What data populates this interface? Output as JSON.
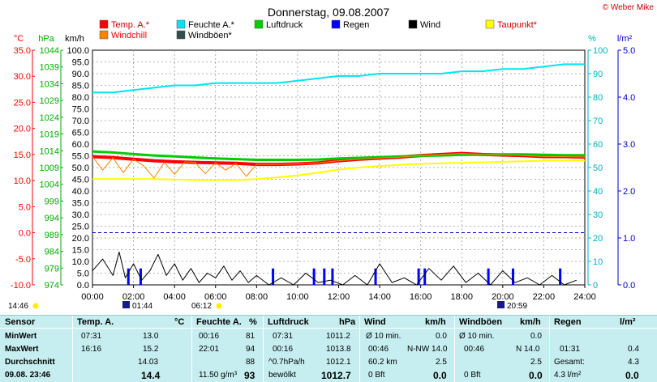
{
  "title": "Donnerstag, 09.08.2007",
  "copyright": "© Weber Mike",
  "unit_labels": {
    "celsius": "°C",
    "hpa": "hPa",
    "kmh": "km/h",
    "percent": "%",
    "rain": "l/m²"
  },
  "legend": [
    {
      "label": "Temp. A.*",
      "color": "#ff0000"
    },
    {
      "label": "Feuchte A.*",
      "color": "#00e5ee"
    },
    {
      "label": "Luftdruck",
      "color": "#00cc00"
    },
    {
      "label": "Regen",
      "color": "#0000ff"
    },
    {
      "label": "Wind",
      "color": "#000000"
    },
    {
      "label": "Taupunkt*",
      "color": "#ffff00"
    },
    {
      "label": "Windchill",
      "color": "#ff8000"
    },
    {
      "label": "Windböen*",
      "color": "#2f4f4f"
    }
  ],
  "markers": [
    "14:46",
    "01:44",
    "06:12",
    "20:59"
  ],
  "chart_data": {
    "type": "line",
    "x_ticks": [
      "00:00",
      "02:00",
      "04:00",
      "06:00",
      "08:00",
      "10:00",
      "12:00",
      "14:00",
      "16:00",
      "18:00",
      "20:00",
      "22:00",
      "24:00"
    ],
    "y_axes": {
      "celsius": {
        "ticks": [
          "35.0",
          "30.0",
          "25.0",
          "20.0",
          "15.0",
          "10.0",
          "5.0",
          "0.0",
          "-5.0",
          "-10.0"
        ],
        "range": [
          -10,
          35
        ]
      },
      "hpa": {
        "ticks": [
          "1044",
          "1039",
          "1034",
          "1029",
          "1024",
          "1019",
          "1014",
          "1009",
          "1004",
          "999",
          "994",
          "989",
          "984",
          "979",
          "974"
        ],
        "range": [
          974,
          1044
        ]
      },
      "kmh": {
        "ticks": [
          "100.0",
          "95.0",
          "90.0",
          "85.0",
          "80.0",
          "75.0",
          "70.0",
          "65.0",
          "60.0",
          "55.0",
          "50.0",
          "45.0",
          "40.0",
          "35.0",
          "30.0",
          "25.0",
          "20.0",
          "15.0",
          "10.0",
          "5.0",
          "0.0"
        ],
        "range": [
          0,
          100
        ]
      },
      "percent": {
        "ticks": [
          "100",
          "90",
          "80",
          "70",
          "60",
          "50",
          "40",
          "30",
          "20",
          "10",
          "0"
        ],
        "range": [
          0,
          100
        ]
      },
      "rain": {
        "ticks": [
          "5.0",
          "4.0",
          "3.0",
          "2.0",
          "1.0",
          "0.0"
        ],
        "range": [
          0,
          5
        ]
      }
    },
    "series": [
      {
        "name": "Temp. A.*",
        "axis": "celsius",
        "color": "#ff0000",
        "width": 4,
        "x": [
          0,
          1,
          2,
          3,
          4,
          5,
          6,
          7,
          8,
          9,
          10,
          11,
          12,
          13,
          14,
          15,
          16,
          17,
          18,
          19,
          20,
          21,
          22,
          23,
          24
        ],
        "y": [
          14.6,
          14.4,
          14.1,
          13.8,
          13.6,
          13.5,
          13.4,
          13.3,
          13.1,
          13.1,
          13.2,
          13.4,
          13.8,
          14.1,
          14.3,
          14.5,
          14.8,
          15.0,
          15.2,
          15.0,
          14.9,
          14.8,
          14.6,
          14.6,
          14.5
        ]
      },
      {
        "name": "Feuchte A.*",
        "axis": "percent",
        "color": "#00e5ee",
        "width": 2,
        "x": [
          0,
          1,
          2,
          3,
          4,
          5,
          6,
          7,
          8,
          9,
          10,
          11,
          12,
          13,
          14,
          15,
          16,
          17,
          18,
          19,
          20,
          21,
          22,
          23,
          24
        ],
        "y": [
          82,
          82,
          83,
          84,
          85,
          85,
          86,
          86,
          86,
          86,
          87,
          88,
          89,
          89,
          90,
          90,
          90,
          90,
          91,
          91,
          92,
          92,
          93,
          94,
          94
        ]
      },
      {
        "name": "Luftdruck",
        "axis": "hpa",
        "color": "#00cc00",
        "width": 3,
        "x": [
          0,
          1,
          2,
          3,
          4,
          5,
          6,
          7,
          8,
          9,
          10,
          11,
          12,
          13,
          14,
          15,
          16,
          17,
          18,
          19,
          20,
          21,
          22,
          23,
          24
        ],
        "y": [
          1013.8,
          1013.5,
          1013.0,
          1012.6,
          1012.3,
          1012.0,
          1011.7,
          1011.5,
          1011.3,
          1011.3,
          1011.3,
          1011.4,
          1011.7,
          1011.9,
          1012.1,
          1012.3,
          1012.5,
          1012.6,
          1012.8,
          1012.8,
          1012.9,
          1012.9,
          1012.8,
          1012.7,
          1012.7
        ]
      },
      {
        "name": "Taupunkt*",
        "axis": "celsius",
        "color": "#ffff00",
        "width": 2,
        "x": [
          0,
          1,
          2,
          3,
          4,
          5,
          6,
          7,
          8,
          9,
          10,
          11,
          12,
          13,
          14,
          15,
          16,
          17,
          18,
          19,
          20,
          21,
          22,
          23,
          24
        ],
        "y": [
          10.3,
          10.3,
          10.3,
          10.3,
          10.2,
          10.1,
          10.1,
          10.1,
          10.3,
          10.6,
          11.0,
          11.5,
          12.1,
          12.5,
          12.8,
          13.0,
          13.2,
          13.3,
          13.4,
          13.5,
          13.6,
          13.7,
          13.8,
          13.8,
          13.8
        ]
      },
      {
        "name": "Windchill",
        "axis": "celsius",
        "color": "#ff8000",
        "width": 1,
        "x": [
          0,
          0.5,
          1,
          1.5,
          2,
          2.5,
          3,
          3.5,
          4,
          4.5,
          5,
          5.5,
          6,
          6.5,
          7,
          7.5,
          8,
          9,
          10,
          11,
          12,
          13,
          14,
          15,
          16,
          17,
          18,
          19,
          20,
          21,
          22,
          23,
          24
        ],
        "y": [
          14.6,
          12.0,
          14.4,
          11.5,
          14.1,
          12.8,
          10.5,
          13.5,
          11.2,
          13.6,
          13.5,
          11.3,
          13.4,
          12.0,
          13.3,
          10.8,
          13.1,
          13.1,
          13.2,
          13.4,
          13.8,
          14.1,
          14.3,
          14.5,
          14.8,
          15.0,
          15.2,
          15.0,
          14.9,
          14.8,
          14.6,
          14.6,
          14.5
        ]
      },
      {
        "name": "Wind",
        "axis": "kmh",
        "color": "#000000",
        "width": 1,
        "x": [
          0,
          0.5,
          1,
          1.3,
          1.6,
          2,
          2.4,
          2.8,
          3.2,
          3.6,
          4,
          4.4,
          4.8,
          5.2,
          5.6,
          6,
          6.4,
          6.8,
          7.2,
          7.6,
          8,
          8.6,
          9.2,
          9.8,
          10.4,
          11,
          11.6,
          12.2,
          12.8,
          13.4,
          14,
          14.6,
          15.2,
          15.8,
          16.4,
          17,
          17.6,
          18.2,
          18.8,
          19.4,
          20,
          20.6,
          21.2,
          21.8,
          22.4,
          23,
          23.6
        ],
        "y": [
          6,
          11,
          4,
          14,
          3,
          9,
          2,
          6,
          13,
          4,
          9,
          2,
          7,
          1,
          5,
          3,
          8,
          2,
          6,
          1,
          4,
          0,
          3,
          0,
          5,
          1,
          2,
          0,
          4,
          0,
          9,
          1,
          3,
          0,
          7,
          2,
          8,
          1,
          5,
          0,
          6,
          1,
          3,
          0,
          4,
          0,
          2
        ]
      }
    ],
    "rain_bars": {
      "axis": "kmh",
      "color": "#0000ff",
      "x": [
        1.75,
        2.35,
        8.8,
        10.8,
        11.3,
        11.7,
        13.8,
        15.9,
        16.2,
        19.3,
        20.5,
        22.8
      ],
      "y": [
        7,
        7,
        7,
        7,
        7,
        7,
        7,
        7,
        7,
        7,
        7,
        7
      ]
    },
    "reference_line": {
      "axis": "celsius",
      "value": 0
    }
  },
  "table": {
    "headers": [
      {
        "label": "Sensor"
      },
      {
        "label": "Temp. A.",
        "unit": "°C"
      },
      {
        "label": "Feuchte A.",
        "unit": "%"
      },
      {
        "label": "Luftdruck",
        "unit": "hPa"
      },
      {
        "label": "Wind",
        "unit": "km/h"
      },
      {
        "label": "Windböen",
        "unit": "km/h"
      },
      {
        "label": "Regen",
        "unit": "l/m²"
      }
    ],
    "row_labels": [
      "MinWert",
      "MaxWert",
      "Durchschnitt",
      "09.08. 23:46"
    ],
    "temp": {
      "min_time": "07:31",
      "min": "13.0",
      "max_time": "16:16",
      "max": "15.2",
      "avg": "14.03",
      "cur": "14.4"
    },
    "humidity": {
      "min_time": "00:16",
      "min": "81",
      "max_time": "22:01",
      "max": "94",
      "avg": "88",
      "cur_extra": "11.50 g/m³",
      "cur": "93"
    },
    "pressure": {
      "min_time": "07:31",
      "min": "1011.2",
      "max_time": "00:16",
      "max": "1013.8",
      "avg_label": "^0.7hPa/h",
      "avg": "1012.1",
      "cur_label": "bewölkt",
      "cur": "1012.7"
    },
    "wind": {
      "r1_label": "Ø 10 min.",
      "r1_val": "0.0",
      "r2_time": "00:46",
      "r2_dir": "N-NW 14.0",
      "r3_label": "60.2 km",
      "r3_val": "2.5",
      "r4_label": "0 Bft",
      "r4_val": "0.0"
    },
    "gust": {
      "r1_label": "Ø 10 min.",
      "r1_val": "0.0",
      "r2_time": "00:46",
      "r2_val": "N 14.0",
      "r3_val": "2.5",
      "r4_label": "0 Bft",
      "r4_val": "0.0"
    },
    "rain": {
      "r2_time": "01:31",
      "r2_val": "0.4",
      "r3_label": "Gesamt:",
      "r3_val": "4.3",
      "r4_label": "4.3 l/m²",
      "r4_val": "0.0"
    }
  }
}
